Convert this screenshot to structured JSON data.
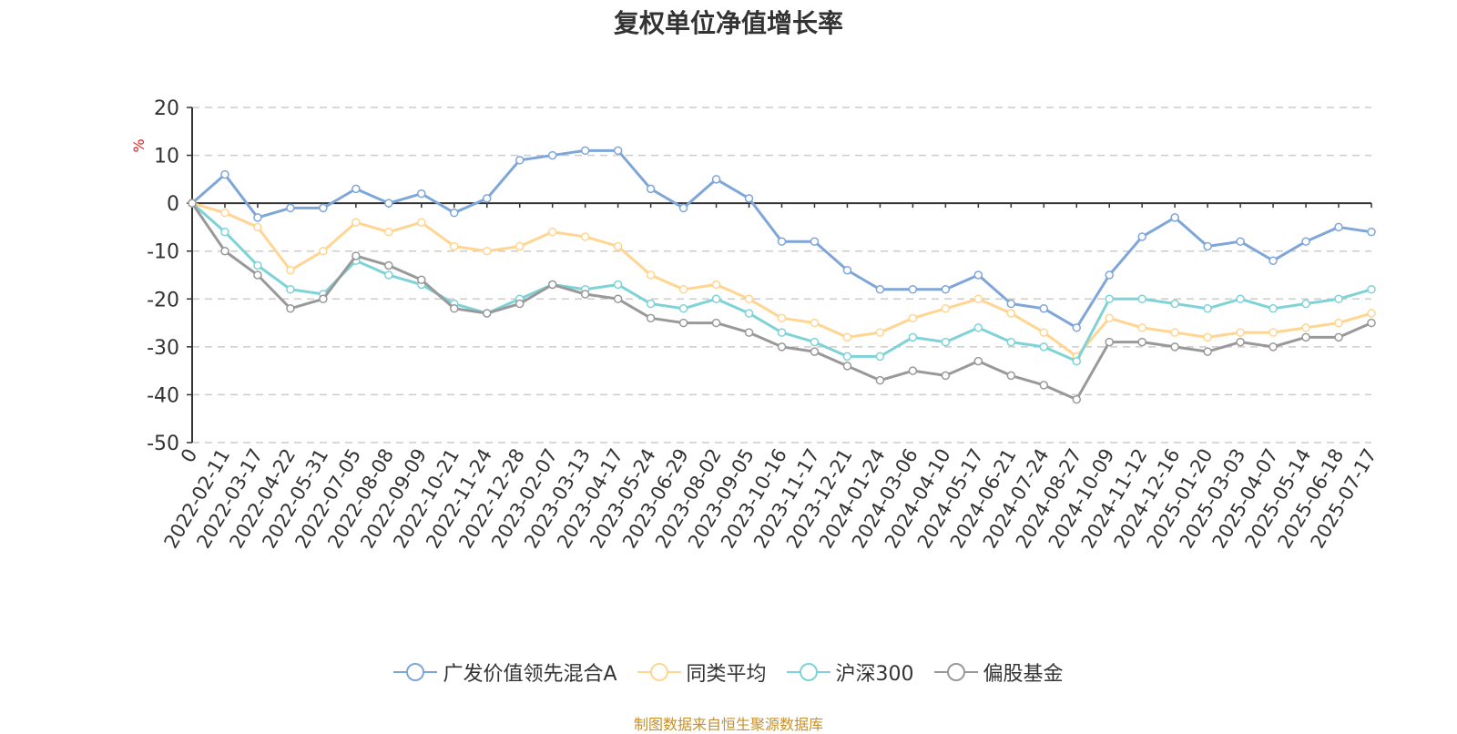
{
  "chart_data": {
    "type": "line",
    "title": "复权单位净值增长率",
    "ylabel": "%",
    "ylim": [
      -50,
      20
    ],
    "yticks": [
      20,
      10,
      0,
      -10,
      -20,
      -30,
      -40,
      -50
    ],
    "grid": true,
    "legend_position": "bottom",
    "x": [
      "0",
      "2022-02-11",
      "2022-03-17",
      "2022-04-22",
      "2022-05-31",
      "2022-07-05",
      "2022-08-08",
      "2022-09-09",
      "2022-10-21",
      "2022-11-24",
      "2022-12-28",
      "2023-02-07",
      "2023-03-13",
      "2023-04-17",
      "2023-05-24",
      "2023-06-29",
      "2023-08-02",
      "2023-09-05",
      "2023-10-16",
      "2023-11-17",
      "2023-12-21",
      "2024-01-24",
      "2024-03-06",
      "2024-04-10",
      "2024-05-17",
      "2024-06-21",
      "2024-07-24",
      "2024-08-27",
      "2024-10-09",
      "2024-11-12",
      "2024-12-16",
      "2025-01-20",
      "2025-03-03",
      "2025-04-07",
      "2025-05-14",
      "2025-06-18",
      "2025-07-17"
    ],
    "series": [
      {
        "name": "广发价值领先混合A",
        "color": "#7fa6d8",
        "values": [
          0,
          6,
          -3,
          -1,
          -1,
          3,
          0,
          2,
          -2,
          1,
          9,
          10,
          11,
          11,
          3,
          -1,
          5,
          1,
          -8,
          -8,
          -14,
          -18,
          -18,
          -18,
          -15,
          -21,
          -22,
          -26,
          -15,
          -7,
          -3,
          -9,
          -8,
          -12,
          -8,
          -5,
          -6
        ]
      },
      {
        "name": "同类平均",
        "color": "#ffd591",
        "values": [
          0,
          -2,
          -5,
          -14,
          -10,
          -4,
          -6,
          -4,
          -9,
          -10,
          -9,
          -6,
          -7,
          -9,
          -15,
          -18,
          -17,
          -20,
          -24,
          -25,
          -28,
          -27,
          -24,
          -22,
          -20,
          -23,
          -27,
          -32,
          -24,
          -26,
          -27,
          -28,
          -27,
          -27,
          -26,
          -25,
          -23
        ]
      },
      {
        "name": "沪深300",
        "color": "#7fd3d6",
        "values": [
          0,
          -6,
          -13,
          -18,
          -19,
          -12,
          -15,
          -17,
          -21,
          -23,
          -20,
          -17,
          -18,
          -17,
          -21,
          -22,
          -20,
          -23,
          -27,
          -29,
          -32,
          -32,
          -28,
          -29,
          -26,
          -29,
          -30,
          -33,
          -20,
          -20,
          -21,
          -22,
          -20,
          -22,
          -21,
          -20,
          -18
        ]
      },
      {
        "name": "偏股基金",
        "color": "#999999",
        "values": [
          0,
          -10,
          -15,
          -22,
          -20,
          -11,
          -13,
          -16,
          -22,
          -23,
          -21,
          -17,
          -19,
          -20,
          -24,
          -25,
          -25,
          -27,
          -30,
          -31,
          -34,
          -37,
          -35,
          -36,
          -33,
          -36,
          -38,
          -41,
          -29,
          -29,
          -30,
          -31,
          -29,
          -30,
          -28,
          -28,
          -25
        ]
      }
    ]
  },
  "legend": {
    "items": [
      "广发价值领先混合A",
      "同类平均",
      "沪深300",
      "偏股基金"
    ]
  },
  "source": "制图数据来自恒生聚源数据库"
}
